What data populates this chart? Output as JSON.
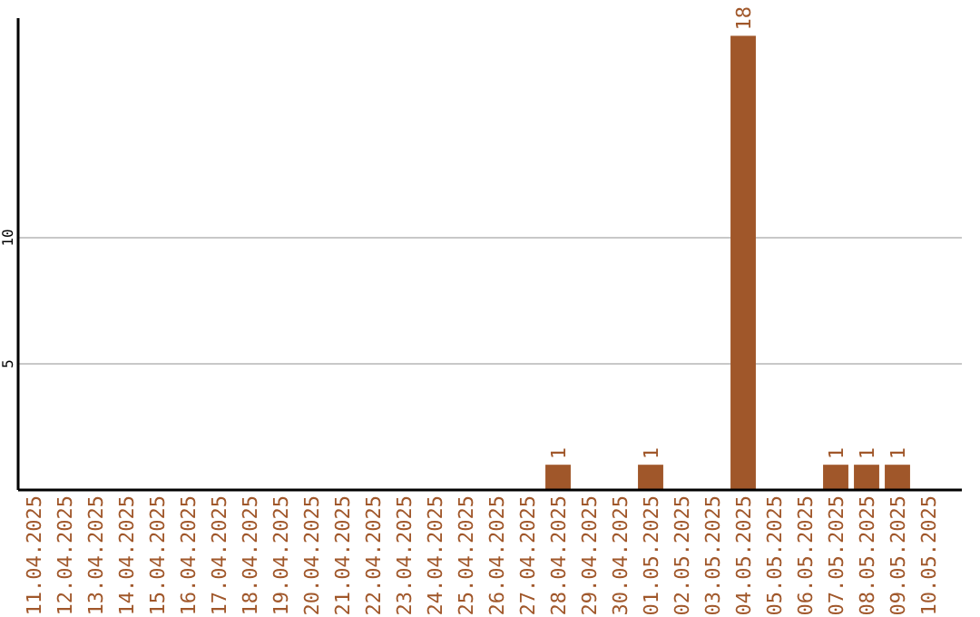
{
  "chart_data": {
    "type": "bar",
    "categories": [
      "11.04.2025",
      "12.04.2025",
      "13.04.2025",
      "14.04.2025",
      "15.04.2025",
      "16.04.2025",
      "17.04.2025",
      "18.04.2025",
      "19.04.2025",
      "20.04.2025",
      "21.04.2025",
      "22.04.2025",
      "23.04.2025",
      "24.04.2025",
      "25.04.2025",
      "26.04.2025",
      "27.04.2025",
      "28.04.2025",
      "29.04.2025",
      "30.04.2025",
      "01.05.2025",
      "02.05.2025",
      "03.05.2025",
      "04.05.2025",
      "05.05.2025",
      "06.05.2025",
      "07.05.2025",
      "08.05.2025",
      "09.05.2025",
      "10.05.2025"
    ],
    "values": [
      0,
      0,
      0,
      0,
      0,
      0,
      0,
      0,
      0,
      0,
      0,
      0,
      0,
      0,
      0,
      0,
      0,
      1,
      0,
      0,
      1,
      0,
      0,
      18,
      0,
      0,
      1,
      1,
      1,
      0
    ],
    "value_labels": [
      null,
      null,
      null,
      null,
      null,
      null,
      null,
      null,
      null,
      null,
      null,
      null,
      null,
      null,
      null,
      null,
      null,
      "1",
      null,
      null,
      "1",
      null,
      null,
      "18",
      null,
      null,
      "1",
      "1",
      "1",
      null
    ],
    "color": "#a0572a",
    "ylim": [
      0,
      18.7
    ],
    "yticks": [
      5,
      10
    ],
    "grid": "y"
  }
}
